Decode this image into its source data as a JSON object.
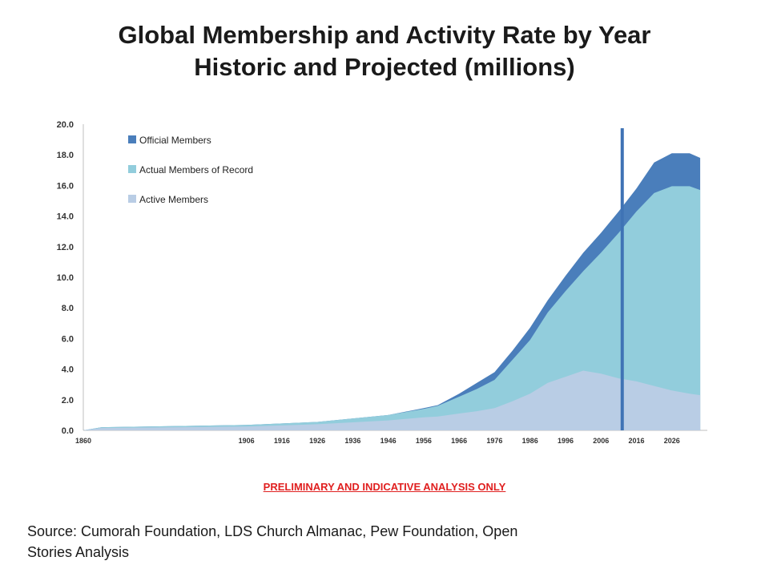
{
  "title": {
    "line1": "Global Membership and Activity Rate by Year",
    "line2": "Historic and Projected (millions)"
  },
  "notice": "PRELIMINARY AND INDICATIVE ANALYSIS ONLY",
  "source": "Source: Cumorah Foundation, LDS Church Almanac, Pew Foundation, Open Stories Analysis",
  "chart_data": {
    "type": "area",
    "title": "",
    "xlabel": "",
    "ylabel": "",
    "xlim": [
      1860,
      2036
    ],
    "ylim": [
      0,
      20
    ],
    "x_ticks": [
      1860,
      1906,
      1916,
      1926,
      1936,
      1946,
      1956,
      1966,
      1976,
      1986,
      1996,
      2006,
      2016,
      2026
    ],
    "y_ticks": [
      "0.0",
      "2.0",
      "4.0",
      "6.0",
      "8.0",
      "10.0",
      "12.0",
      "14.0",
      "16.0",
      "18.0",
      "20.0"
    ],
    "legend_position": "top-left",
    "grid": false,
    "vertical_marker_x": 2012,
    "x": [
      1860,
      1865,
      1906,
      1926,
      1946,
      1956,
      1960,
      1966,
      1971,
      1976,
      1981,
      1986,
      1991,
      1996,
      2001,
      2006,
      2011,
      2016,
      2021,
      2026,
      2031,
      2034
    ],
    "series": [
      {
        "name": "Official Members",
        "color": "#4a7ebb",
        "values": [
          0,
          0.2,
          0.35,
          0.55,
          1.0,
          1.45,
          1.65,
          2.4,
          3.1,
          3.8,
          5.2,
          6.7,
          8.5,
          10.1,
          11.6,
          12.9,
          14.3,
          15.8,
          17.5,
          18.1,
          18.1,
          17.8
        ]
      },
      {
        "name": "Actual Members of Record",
        "color": "#92cddc",
        "values": [
          0,
          0.2,
          0.35,
          0.55,
          1.0,
          1.4,
          1.6,
          2.2,
          2.7,
          3.3,
          4.6,
          5.9,
          7.7,
          9.1,
          10.4,
          11.6,
          12.9,
          14.3,
          15.5,
          15.95,
          15.95,
          15.7
        ]
      },
      {
        "name": "Active Members",
        "color": "#b9cde5",
        "values": [
          0,
          0.15,
          0.25,
          0.4,
          0.65,
          0.85,
          0.9,
          1.1,
          1.25,
          1.45,
          1.9,
          2.4,
          3.1,
          3.5,
          3.9,
          3.7,
          3.4,
          3.2,
          2.9,
          2.6,
          2.4,
          2.3
        ]
      }
    ]
  }
}
